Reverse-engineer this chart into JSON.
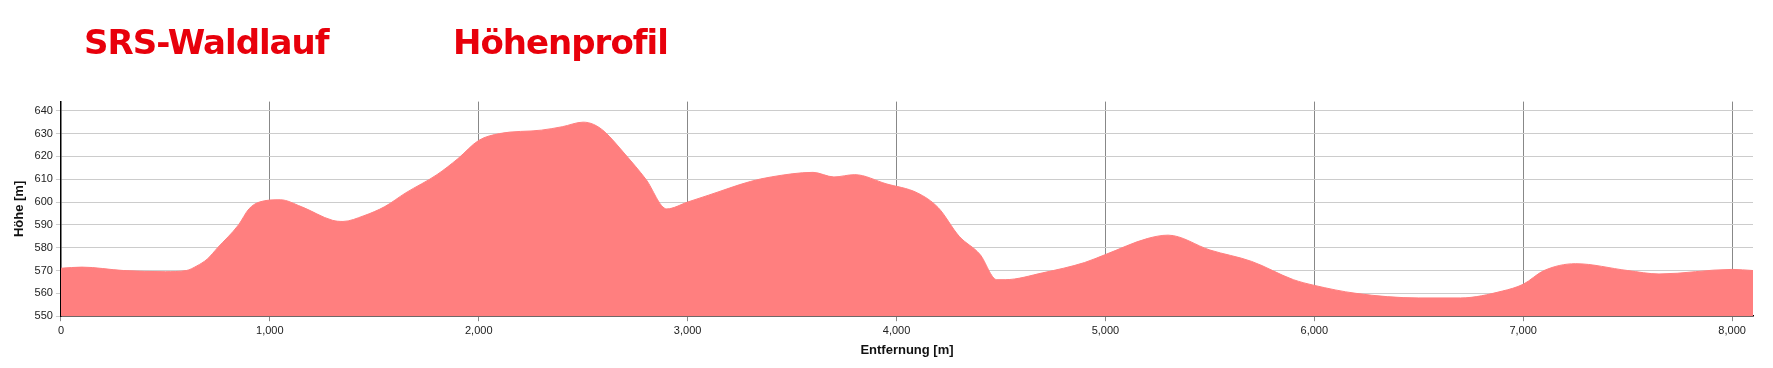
{
  "chart_data": {
    "type": "area",
    "title": "SRS-Waldlauf",
    "subtitle": "Höhenprofil",
    "xlabel": "Entfernung [m]",
    "ylabel": "Höhe [m]",
    "x": [
      0,
      100,
      300,
      500,
      600,
      650,
      700,
      750,
      850,
      900,
      950,
      1050,
      1150,
      1300,
      1350,
      1450,
      1550,
      1650,
      1800,
      1900,
      2000,
      2100,
      2300,
      2400,
      2500,
      2550,
      2600,
      2700,
      2800,
      2900,
      3000,
      3100,
      3300,
      3400,
      3600,
      3700,
      3800,
      3950,
      4100,
      4200,
      4300,
      4400,
      4480,
      4520,
      4700,
      4900,
      5000,
      5200,
      5300,
      5500,
      5700,
      5900,
      6000,
      6200,
      6500,
      6700,
      6900,
      7000,
      7100,
      7250,
      7500,
      7650,
      8000,
      8100
    ],
    "series": [
      {
        "color": "#ff7f7f",
        "values": [
          571,
          571.5,
          570,
          569.5,
          570,
          572,
          575,
          580,
          590,
          597,
          600,
          601,
          598,
          592,
          591.5,
          594,
          598,
          604,
          612,
          619,
          627,
          630,
          631.5,
          633,
          635,
          634,
          631,
          621,
          610,
          597,
          600,
          603,
          609,
          611,
          613,
          611,
          612,
          608,
          604,
          597.5,
          585,
          577,
          566,
          566,
          569,
          573.5,
          577,
          584,
          585.5,
          579,
          574,
          566,
          563.5,
          560,
          558,
          558,
          561,
          564,
          570,
          573,
          570,
          568.5,
          570.5,
          570
        ]
      }
    ],
    "xlim": [
      0,
      8100
    ],
    "xticks": [
      0,
      {
        "value": 1000,
        "label": "1,000"
      },
      {
        "value": 2000,
        "label": "2,000"
      },
      {
        "value": 3000,
        "label": "3,000"
      },
      {
        "value": 4000,
        "label": "4,000"
      },
      {
        "value": 5000,
        "label": "5,000"
      },
      {
        "value": 6000,
        "label": "6,000"
      },
      {
        "value": 7000,
        "label": "7,000"
      },
      {
        "value": 8000,
        "label": "8,000"
      }
    ],
    "ylim": [
      550,
      644
    ],
    "yticks": [
      550,
      560,
      570,
      580,
      590,
      600,
      610,
      620,
      630,
      640
    ],
    "grid": true,
    "legend": false,
    "marker": "none",
    "line_style": "solid"
  }
}
